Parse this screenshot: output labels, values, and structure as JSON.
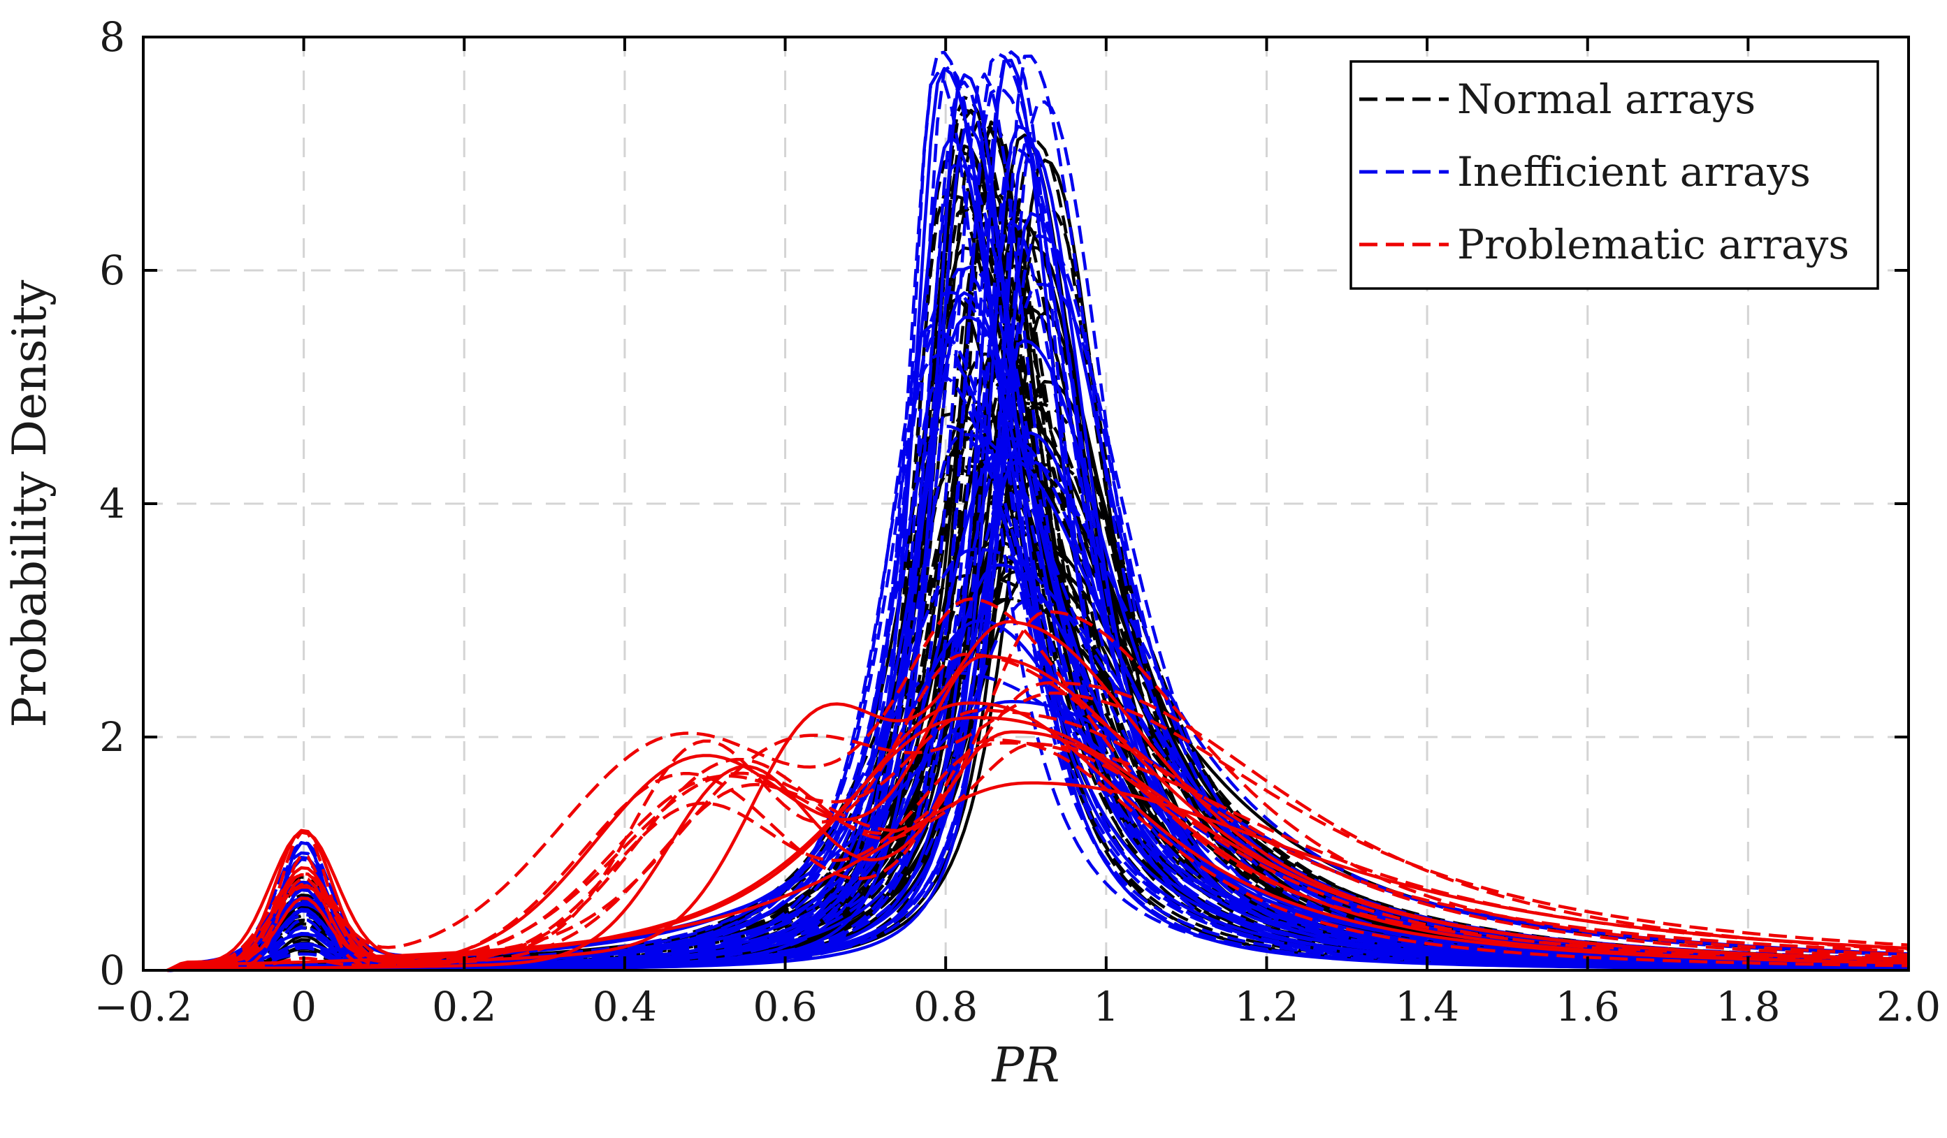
{
  "chart_data": {
    "type": "line",
    "title": "",
    "xlabel": "PR",
    "ylabel": "Probability Density",
    "xlim": [
      -0.2,
      2.0
    ],
    "ylim": [
      0,
      8
    ],
    "xticks": [
      -0.2,
      0,
      0.2,
      0.4,
      0.6,
      0.8,
      1,
      1.2,
      1.4,
      1.6,
      1.8,
      2.0
    ],
    "xtick_labels": [
      "−0.2",
      "0",
      "0.2",
      "0.4",
      "0.6",
      "0.8",
      "1",
      "1.2",
      "1.4",
      "1.6",
      "1.8",
      "2.0"
    ],
    "yticks": [
      0,
      2,
      4,
      6,
      8
    ],
    "ytick_labels": [
      "0",
      "2",
      "4",
      "6",
      "8"
    ],
    "grid": true,
    "legend_position": "top-right",
    "legend": [
      {
        "label": "Normal arrays",
        "color": "#000000"
      },
      {
        "label": "Inefficient arrays",
        "color": "#0000ee"
      },
      {
        "label": "Problematic arrays",
        "color": "#ee0000"
      }
    ],
    "series_groups": [
      {
        "name": "Normal arrays",
        "color": "#000000",
        "count": 60,
        "peak_x_range": [
          0.8,
          0.93
        ],
        "peak_y_range": [
          3.0,
          7.5
        ],
        "zero_bump_max": 0.8
      },
      {
        "name": "Inefficient arrays",
        "color": "#0000ee",
        "count": 45,
        "peak_x_range": [
          0.78,
          0.92
        ],
        "peak_y_range": [
          2.0,
          8.0
        ],
        "zero_bump_max": 1.15
      },
      {
        "name": "Problematic arrays",
        "color": "#ee0000",
        "count": 15,
        "peak_x_range": [
          0.82,
          0.95
        ],
        "peak_y_range": [
          1.5,
          3.5
        ],
        "secondary_peak_x_range": [
          0.45,
          0.65
        ],
        "secondary_peak_y_range": [
          1.2,
          1.7
        ],
        "zero_bump_max": 1.2
      }
    ]
  }
}
